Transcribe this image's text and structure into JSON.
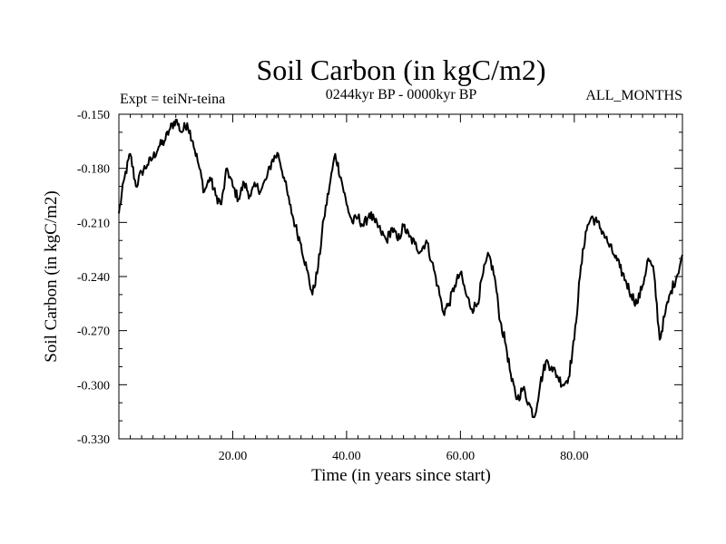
{
  "chart_data": {
    "type": "line",
    "title": "Soil Carbon (in kgC/m2)",
    "subtitle": "0244kyr BP - 0000kyr BP",
    "left_annotation": "Expt = teiNr-teina",
    "right_annotation": "ALL_MONTHS",
    "xlabel": "Time (in years since start)",
    "ylabel": "Soil Carbon (in kgC/m2)",
    "xlim": [
      0,
      99
    ],
    "ylim": [
      -0.33,
      -0.15
    ],
    "x_tick_labels": [
      {
        "value": 20,
        "label": "20.00"
      },
      {
        "value": 40,
        "label": "40.00"
      },
      {
        "value": 60,
        "label": "60.00"
      },
      {
        "value": 80,
        "label": "80.00"
      }
    ],
    "y_tick_labels": [
      {
        "value": -0.15,
        "label": "-0.150"
      },
      {
        "value": -0.18,
        "label": "-0.180"
      },
      {
        "value": -0.21,
        "label": "-0.210"
      },
      {
        "value": -0.24,
        "label": "-0.240"
      },
      {
        "value": -0.27,
        "label": "-0.270"
      },
      {
        "value": -0.3,
        "label": "-0.300"
      },
      {
        "value": -0.33,
        "label": "-0.330"
      }
    ],
    "series": [
      {
        "name": "Soil Carbon",
        "color": "#000000",
        "x": [
          0,
          1,
          2,
          3,
          4,
          5,
          6,
          7,
          8,
          9,
          10,
          11,
          12,
          13,
          14,
          15,
          16,
          17,
          18,
          19,
          20,
          21,
          22,
          23,
          24,
          25,
          26,
          27,
          28,
          29,
          30,
          31,
          32,
          33,
          34,
          35,
          36,
          37,
          38,
          39,
          40,
          41,
          42,
          43,
          44,
          45,
          46,
          47,
          48,
          49,
          50,
          51,
          52,
          53,
          54,
          55,
          56,
          57,
          58,
          59,
          60,
          61,
          62,
          63,
          64,
          65,
          66,
          67,
          68,
          69,
          70,
          71,
          72,
          73,
          74,
          75,
          76,
          77,
          78,
          79,
          80,
          81,
          82,
          83,
          84,
          85,
          86,
          87,
          88,
          89,
          90,
          91,
          92,
          93,
          94,
          95,
          96,
          97,
          98,
          99
        ],
        "values": [
          -0.205,
          -0.185,
          -0.172,
          -0.19,
          -0.182,
          -0.178,
          -0.174,
          -0.168,
          -0.165,
          -0.158,
          -0.153,
          -0.16,
          -0.155,
          -0.165,
          -0.178,
          -0.193,
          -0.185,
          -0.195,
          -0.2,
          -0.18,
          -0.19,
          -0.197,
          -0.188,
          -0.195,
          -0.19,
          -0.192,
          -0.185,
          -0.175,
          -0.172,
          -0.185,
          -0.2,
          -0.212,
          -0.222,
          -0.236,
          -0.25,
          -0.235,
          -0.208,
          -0.19,
          -0.172,
          -0.185,
          -0.2,
          -0.21,
          -0.207,
          -0.212,
          -0.205,
          -0.21,
          -0.215,
          -0.22,
          -0.213,
          -0.22,
          -0.212,
          -0.218,
          -0.222,
          -0.226,
          -0.22,
          -0.232,
          -0.245,
          -0.26,
          -0.255,
          -0.245,
          -0.238,
          -0.25,
          -0.258,
          -0.255,
          -0.238,
          -0.228,
          -0.24,
          -0.265,
          -0.278,
          -0.298,
          -0.308,
          -0.302,
          -0.31,
          -0.318,
          -0.3,
          -0.287,
          -0.29,
          -0.295,
          -0.3,
          -0.296,
          -0.275,
          -0.24,
          -0.215,
          -0.207,
          -0.21,
          -0.215,
          -0.222,
          -0.228,
          -0.235,
          -0.242,
          -0.25,
          -0.255,
          -0.245,
          -0.23,
          -0.238,
          -0.275,
          -0.26,
          -0.248,
          -0.24,
          -0.228
        ]
      }
    ]
  }
}
